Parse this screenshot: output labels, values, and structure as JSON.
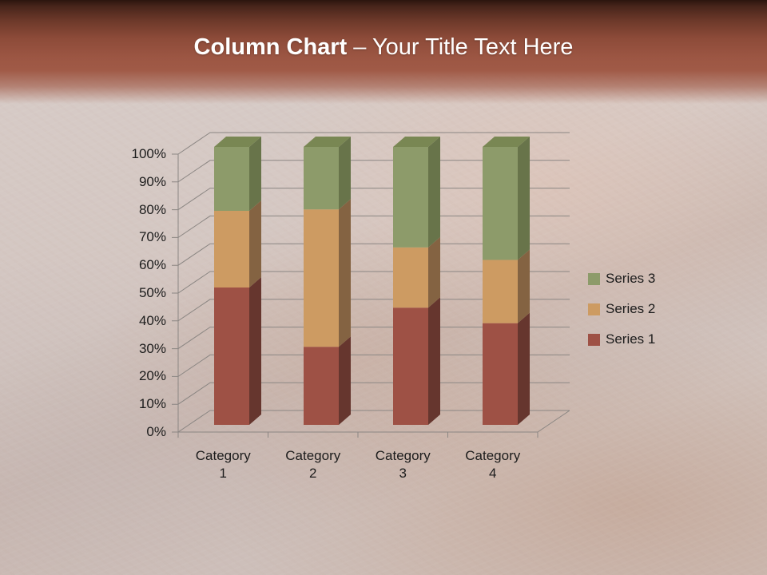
{
  "slide": {
    "title_bold": "Column Chart",
    "title_rest": " – Your Title Text Here"
  },
  "header": {
    "band_color_top": "#2b150e",
    "band_color_main": "#9d5744",
    "title_color": "#ffffff"
  },
  "background": {
    "base_color": "#d4c8c4",
    "texture": "mottled-rose-stone"
  },
  "chart_data": {
    "type": "bar",
    "subtype": "3d-100pct-stacked-column",
    "title": "",
    "xlabel": "",
    "ylabel": "",
    "categories": [
      "Category 1",
      "Category 2",
      "Category 3",
      "Category 4"
    ],
    "categories_lines": [
      [
        "Category",
        "1"
      ],
      [
        "Category",
        "2"
      ],
      [
        "Category",
        "3"
      ],
      [
        "Category",
        "4"
      ]
    ],
    "series": [
      {
        "name": "Series 1",
        "values": [
          4.3,
          2.5,
          3.5,
          4.5
        ],
        "pct": [
          49.4,
          28.1,
          42.2,
          36.6
        ],
        "front_color": "#9e5145",
        "side_color": "#66362e",
        "top_color": "#7e4238"
      },
      {
        "name": "Series 2",
        "values": [
          2.4,
          4.4,
          1.8,
          2.8
        ],
        "pct": [
          27.6,
          49.4,
          21.7,
          22.8
        ],
        "front_color": "#cd9b62",
        "side_color": "#846342",
        "top_color": "#a87e50"
      },
      {
        "name": "Series 3",
        "values": [
          2.0,
          2.0,
          3.0,
          5.0
        ],
        "pct": [
          23.0,
          22.5,
          36.1,
          40.6
        ],
        "front_color": "#8d9b6a",
        "side_color": "#68744a",
        "top_color": "#798753"
      }
    ],
    "y_ticks": [
      "0%",
      "10%",
      "20%",
      "30%",
      "40%",
      "50%",
      "60%",
      "70%",
      "80%",
      "90%",
      "100%"
    ],
    "ylim": [
      0,
      100
    ],
    "grid": true,
    "gridline_color": "#8b8683",
    "axis_text_color": "#1c1c1c",
    "legend_position": "right",
    "legend_order": [
      "Series 3",
      "Series 2",
      "Series 1"
    ]
  }
}
